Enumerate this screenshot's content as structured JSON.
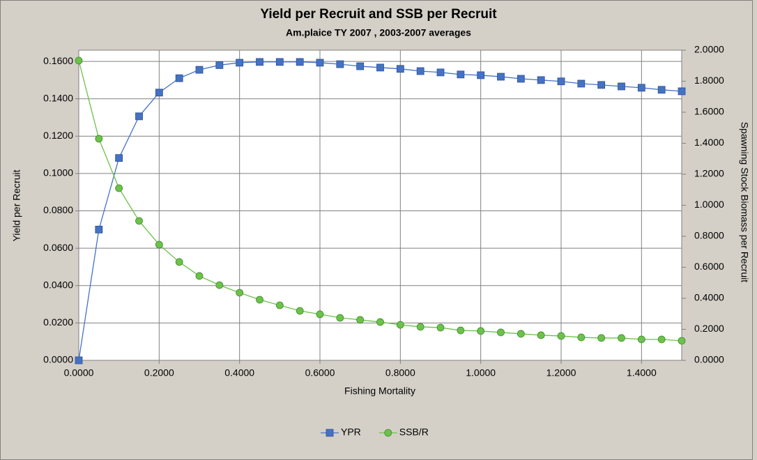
{
  "chart_data": {
    "type": "line",
    "title": "Yield per Recruit and SSB per Recruit",
    "subtitle": "Am.plaice TY 2007 , 2003-2007 averages",
    "x_label": "Fishing Mortality",
    "y_label": "Yield per Recruit",
    "y2_label": "Spawning Stock Biomass per Recruit",
    "x": [
      0,
      0.05,
      0.1,
      0.15,
      0.2,
      0.25,
      0.3,
      0.35,
      0.4,
      0.45,
      0.5,
      0.55,
      0.6,
      0.65,
      0.7,
      0.75,
      0.8,
      0.85,
      0.9,
      0.95,
      1.0,
      1.05,
      1.1,
      1.15,
      1.2,
      1.25,
      1.3,
      1.35,
      1.4,
      1.45,
      1.5
    ],
    "series": [
      {
        "name": "YPR",
        "color": "#4472c4",
        "marker": "square",
        "axis": "y",
        "values": [
          0,
          0.07,
          0.1083,
          0.1306,
          0.1433,
          0.151,
          0.1555,
          0.158,
          0.1593,
          0.1597,
          0.1597,
          0.1597,
          0.1593,
          0.1585,
          0.1574,
          0.1567,
          0.156,
          0.1548,
          0.1541,
          0.153,
          0.1526,
          0.1518,
          0.1507,
          0.15,
          0.1493,
          0.1481,
          0.1474,
          0.1466,
          0.1459,
          0.1448,
          0.144
        ]
      },
      {
        "name": "SSB/R",
        "color": "#6cc24a",
        "marker": "circle",
        "axis": "y2",
        "values": [
          1.933,
          1.429,
          1.11,
          0.899,
          0.746,
          0.634,
          0.544,
          0.485,
          0.436,
          0.391,
          0.355,
          0.319,
          0.297,
          0.274,
          0.261,
          0.247,
          0.229,
          0.216,
          0.211,
          0.193,
          0.189,
          0.18,
          0.171,
          0.162,
          0.157,
          0.148,
          0.144,
          0.144,
          0.135,
          0.135,
          0.126
        ]
      }
    ],
    "xlim": [
      0,
      1.5
    ],
    "xticks": [
      {
        "value": 0,
        "label": "0.0000"
      },
      {
        "value": 0.2,
        "label": "0.2000"
      },
      {
        "value": 0.4,
        "label": "0.4000"
      },
      {
        "value": 0.6,
        "label": "0.6000"
      },
      {
        "value": 0.8,
        "label": "0.8000"
      },
      {
        "value": 1.0,
        "label": "1.0000"
      },
      {
        "value": 1.2,
        "label": "1.2000"
      },
      {
        "value": 1.4,
        "label": "1.4000"
      }
    ],
    "ylim": [
      0,
      0.166
    ],
    "yticks": [
      {
        "value": 0,
        "label": "0.0000"
      },
      {
        "value": 0.02,
        "label": "0.0200"
      },
      {
        "value": 0.04,
        "label": "0.0400"
      },
      {
        "value": 0.06,
        "label": "0.0600"
      },
      {
        "value": 0.08,
        "label": "0.0800"
      },
      {
        "value": 0.1,
        "label": "0.1000"
      },
      {
        "value": 0.12,
        "label": "0.1200"
      },
      {
        "value": 0.14,
        "label": "0.1400"
      },
      {
        "value": 0.16,
        "label": "0.1600"
      }
    ],
    "y2lim": [
      0,
      2
    ],
    "y2ticks": [
      {
        "value": 0,
        "label": "0.0000"
      },
      {
        "value": 0.2,
        "label": "0.2000"
      },
      {
        "value": 0.4,
        "label": "0.4000"
      },
      {
        "value": 0.6,
        "label": "0.6000"
      },
      {
        "value": 0.8,
        "label": "0.8000"
      },
      {
        "value": 1.0,
        "label": "1.0000"
      },
      {
        "value": 1.2,
        "label": "1.2000"
      },
      {
        "value": 1.4,
        "label": "1.4000"
      },
      {
        "value": 1.6,
        "label": "1.6000"
      },
      {
        "value": 1.8,
        "label": "1.8000"
      },
      {
        "value": 2.0,
        "label": "2.0000"
      }
    ],
    "grid": true,
    "legend": "bottom"
  }
}
